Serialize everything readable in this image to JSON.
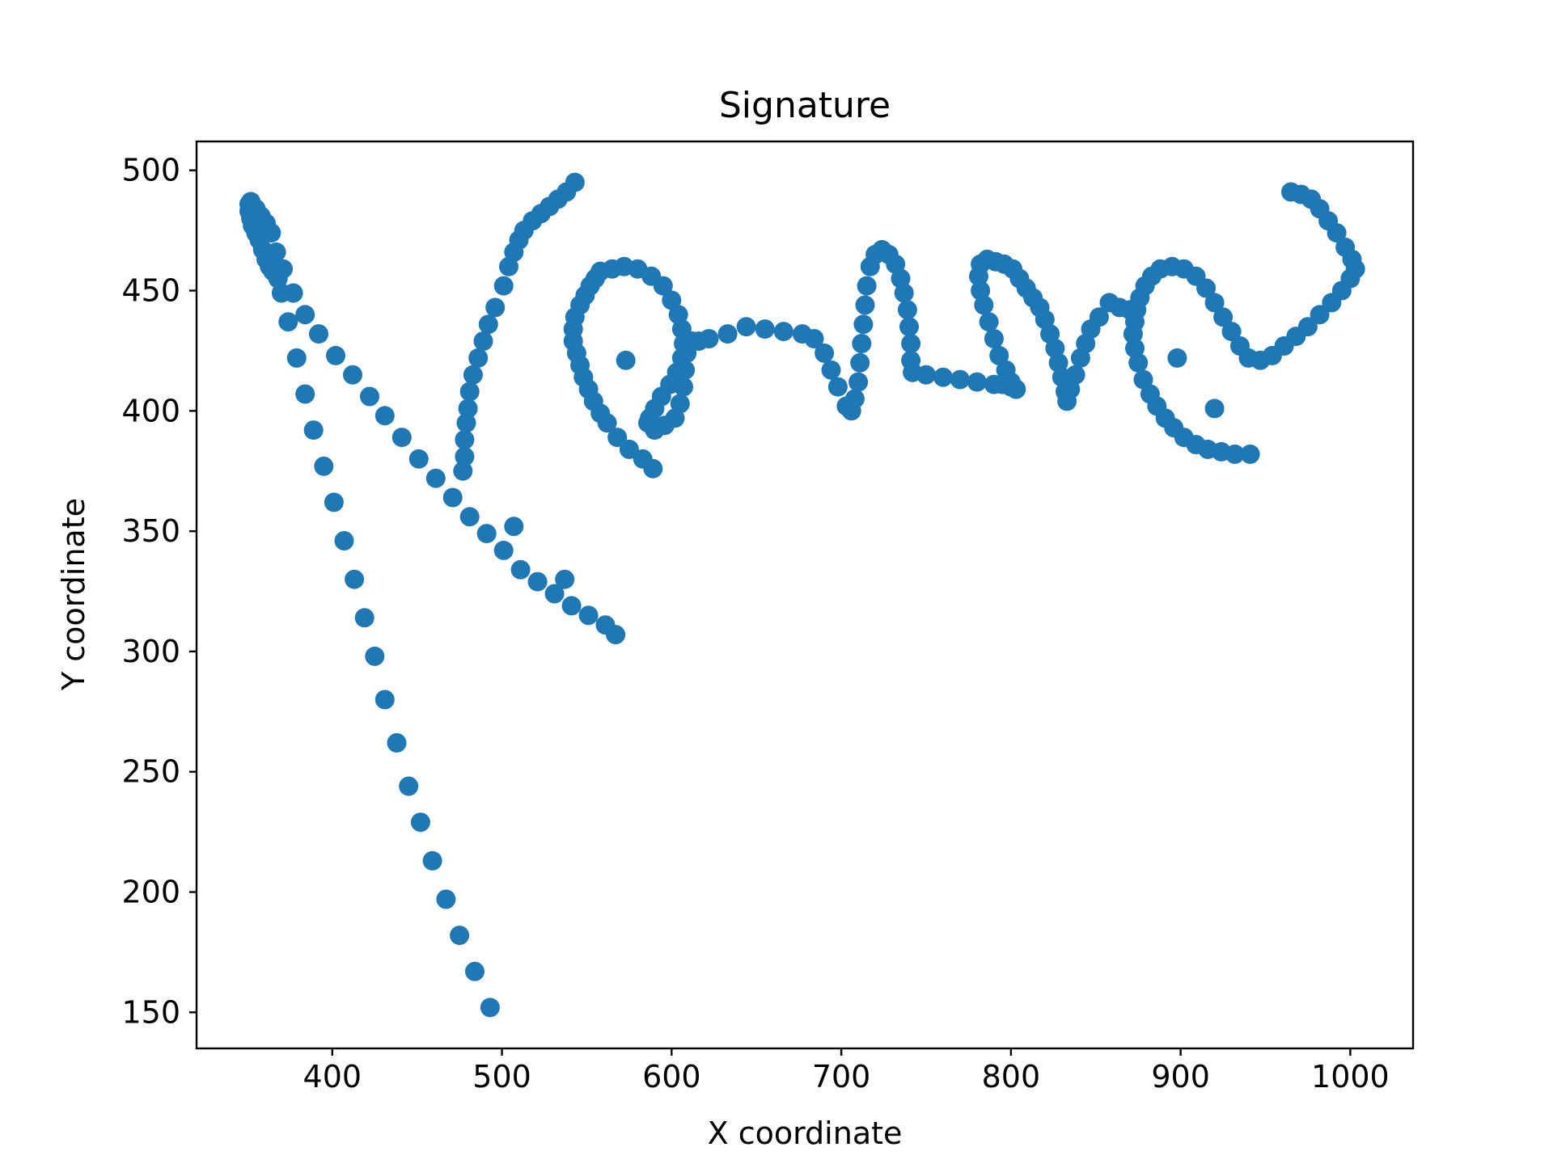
{
  "chart_data": {
    "type": "scatter",
    "title": "Signature",
    "xlabel": "X coordinate",
    "ylabel": "Y coordinate",
    "xlim": [
      320,
      1037
    ],
    "ylim": [
      135,
      512
    ],
    "xticks": [
      400,
      500,
      600,
      700,
      800,
      900,
      1000
    ],
    "yticks": [
      150,
      200,
      250,
      300,
      350,
      400,
      450,
      500
    ],
    "grid": false,
    "legend": "none",
    "marker_color": "#1f77b4",
    "series": [
      {
        "strokes": [
          [
            [
              351,
              486
            ],
            [
              351,
              483
            ],
            [
              352,
              480
            ],
            [
              353,
              477
            ],
            [
              355,
              474
            ],
            [
              357,
              471
            ],
            [
              359,
              467
            ],
            [
              361,
              463
            ],
            [
              363,
              460
            ],
            [
              365,
              458
            ],
            [
              368,
              455
            ],
            [
              370,
              449
            ],
            [
              374,
              437
            ],
            [
              379,
              422
            ],
            [
              384,
              407
            ],
            [
              389,
              392
            ],
            [
              395,
              377
            ],
            [
              401,
              362
            ],
            [
              407,
              346
            ],
            [
              413,
              330
            ],
            [
              419,
              314
            ],
            [
              425,
              298
            ],
            [
              431,
              280
            ],
            [
              438,
              262
            ],
            [
              445,
              244
            ],
            [
              452,
              229
            ],
            [
              459,
              213
            ],
            [
              467,
              197
            ],
            [
              475,
              182
            ],
            [
              484,
              167
            ],
            [
              493,
              152
            ]
          ],
          [
            [
              352,
              487
            ],
            [
              355,
              484
            ],
            [
              358,
              481
            ],
            [
              361,
              478
            ],
            [
              364,
              474
            ],
            [
              367,
              466
            ],
            [
              371,
              459
            ],
            [
              377,
              449
            ],
            [
              384,
              440
            ],
            [
              392,
              432
            ],
            [
              402,
              423
            ],
            [
              412,
              415
            ],
            [
              422,
              406
            ],
            [
              431,
              398
            ],
            [
              441,
              389
            ],
            [
              451,
              380
            ],
            [
              461,
              372
            ],
            [
              471,
              364
            ],
            [
              481,
              356
            ],
            [
              491,
              349
            ],
            [
              501,
              342
            ],
            [
              511,
              334
            ],
            [
              521,
              329
            ],
            [
              531,
              324
            ],
            [
              541,
              319
            ],
            [
              551,
              315
            ],
            [
              561,
              311
            ],
            [
              567,
              307
            ]
          ],
          [
            [
              507,
              352
            ]
          ],
          [
            [
              537,
              330
            ]
          ],
          [
            [
              477,
              375
            ],
            [
              478,
              381
            ],
            [
              478,
              388
            ],
            [
              479,
              395
            ],
            [
              480,
              401
            ],
            [
              481,
              408
            ],
            [
              483,
              415
            ],
            [
              486,
              422
            ],
            [
              489,
              429
            ],
            [
              492,
              436
            ],
            [
              496,
              443
            ],
            [
              501,
              452
            ],
            [
              504,
              460
            ],
            [
              507,
              466
            ],
            [
              510,
              471
            ],
            [
              513,
              475
            ],
            [
              518,
              479
            ],
            [
              523,
              482
            ],
            [
              528,
              485
            ],
            [
              533,
              488
            ],
            [
              538,
              491
            ],
            [
              543,
              495
            ]
          ],
          [
            [
              558,
              458
            ],
            [
              555,
              455
            ],
            [
              552,
              452
            ],
            [
              549,
              448
            ],
            [
              546,
              444
            ],
            [
              543,
              439
            ],
            [
              542,
              434
            ],
            [
              542,
              429
            ],
            [
              544,
              424
            ],
            [
              546,
              419
            ],
            [
              548,
              414
            ],
            [
              551,
              409
            ],
            [
              554,
              404
            ],
            [
              558,
              399
            ],
            [
              562,
              395
            ],
            [
              568,
              389
            ],
            [
              575,
              384
            ],
            [
              583,
              380
            ],
            [
              589,
              376
            ]
          ],
          [
            [
              558,
              458
            ],
            [
              565,
              459
            ],
            [
              572,
              460
            ],
            [
              580,
              459
            ],
            [
              588,
              456
            ],
            [
              595,
              452
            ],
            [
              600,
              446
            ],
            [
              604,
              440
            ],
            [
              606,
              434
            ],
            [
              607,
              428
            ],
            [
              606,
              422
            ],
            [
              603,
              416
            ],
            [
              599,
              411
            ],
            [
              594,
              406
            ],
            [
              590,
              401
            ],
            [
              587,
              397
            ],
            [
              586,
              395
            ],
            [
              590,
              392
            ],
            [
              596,
              394
            ],
            [
              602,
              397
            ],
            [
              605,
              403
            ],
            [
              607,
              410
            ],
            [
              608,
              417
            ],
            [
              609,
              424
            ],
            [
              612,
              429
            ]
          ],
          [
            [
              573,
              421
            ]
          ],
          [
            [
              616,
              429
            ],
            [
              622,
              430
            ],
            [
              633,
              432
            ],
            [
              644,
              435
            ],
            [
              655,
              434
            ],
            [
              666,
              433
            ],
            [
              677,
              432
            ],
            [
              684,
              430
            ],
            [
              690,
              424
            ],
            [
              694,
              417
            ],
            [
              698,
              410
            ],
            [
              703,
              402
            ],
            [
              706,
              400
            ],
            [
              708,
              405
            ],
            [
              710,
              412
            ],
            [
              711,
              420
            ],
            [
              712,
              428
            ],
            [
              713,
              436
            ],
            [
              714,
              444
            ],
            [
              715,
              452
            ],
            [
              717,
              460
            ],
            [
              720,
              465
            ],
            [
              724,
              467
            ],
            [
              728,
              465
            ],
            [
              732,
              461
            ],
            [
              735,
              455
            ],
            [
              737,
              449
            ],
            [
              739,
              442
            ],
            [
              740,
              435
            ],
            [
              741,
              428
            ],
            [
              741,
              421
            ],
            [
              742,
              416
            ]
          ],
          [
            [
              742,
              416
            ],
            [
              750,
              415
            ],
            [
              760,
              414
            ],
            [
              770,
              413
            ],
            [
              780,
              412
            ],
            [
              790,
              411
            ],
            [
              795,
              411
            ],
            [
              800,
              410
            ],
            [
              803,
              409
            ]
          ],
          [
            [
              803,
              409
            ],
            [
              800,
              412
            ],
            [
              797,
              417
            ],
            [
              793,
              423
            ],
            [
              790,
              430
            ],
            [
              787,
              437
            ],
            [
              784,
              444
            ],
            [
              782,
              450
            ],
            [
              781,
              456
            ],
            [
              782,
              461
            ],
            [
              786,
              463
            ],
            [
              791,
              462
            ],
            [
              796,
              461
            ],
            [
              801,
              459
            ],
            [
              805,
              455
            ],
            [
              809,
              451
            ],
            [
              813,
              447
            ],
            [
              817,
              443
            ],
            [
              820,
              438
            ],
            [
              823,
              432
            ],
            [
              826,
              426
            ],
            [
              828,
              420
            ],
            [
              830,
              414
            ],
            [
              832,
              408
            ],
            [
              833,
              404
            ],
            [
              835,
              409
            ],
            [
              838,
              415
            ],
            [
              841,
              422
            ],
            [
              844,
              428
            ],
            [
              847,
              434
            ],
            [
              852,
              439
            ],
            [
              858,
              445
            ],
            [
              864,
              443
            ],
            [
              870,
              442
            ],
            [
              874,
              442
            ]
          ],
          [
            [
              874,
              442
            ],
            [
              876,
              447
            ],
            [
              879,
              452
            ],
            [
              883,
              456
            ],
            [
              888,
              459
            ],
            [
              895,
              460
            ],
            [
              902,
              459
            ],
            [
              909,
              456
            ],
            [
              915,
              451
            ],
            [
              920,
              445
            ],
            [
              925,
              439
            ],
            [
              930,
              433
            ],
            [
              935,
              427
            ],
            [
              940,
              422
            ],
            [
              947,
              421
            ],
            [
              954,
              423
            ],
            [
              961,
              427
            ],
            [
              968,
              431
            ],
            [
              975,
              435
            ],
            [
              982,
              440
            ],
            [
              989,
              445
            ],
            [
              995,
              450
            ],
            [
              1000,
              455
            ],
            [
              1003,
              459
            ],
            [
              1001,
              463
            ],
            [
              997,
              468
            ],
            [
              992,
              474
            ],
            [
              987,
              479
            ],
            [
              982,
              484
            ],
            [
              977,
              488
            ],
            [
              971,
              490
            ],
            [
              965,
              491
            ]
          ],
          [
            [
              874,
              442
            ],
            [
              873,
              437
            ],
            [
              872,
              432
            ],
            [
              873,
              426
            ],
            [
              875,
              420
            ],
            [
              878,
              413
            ],
            [
              882,
              407
            ],
            [
              886,
              402
            ],
            [
              891,
              397
            ],
            [
              896,
              393
            ],
            [
              902,
              389
            ],
            [
              909,
              386
            ],
            [
              916,
              384
            ],
            [
              924,
              383
            ],
            [
              932,
              382
            ],
            [
              941,
              382
            ]
          ],
          [
            [
              898,
              422
            ]
          ],
          [
            [
              920,
              401
            ]
          ]
        ]
      }
    ]
  }
}
